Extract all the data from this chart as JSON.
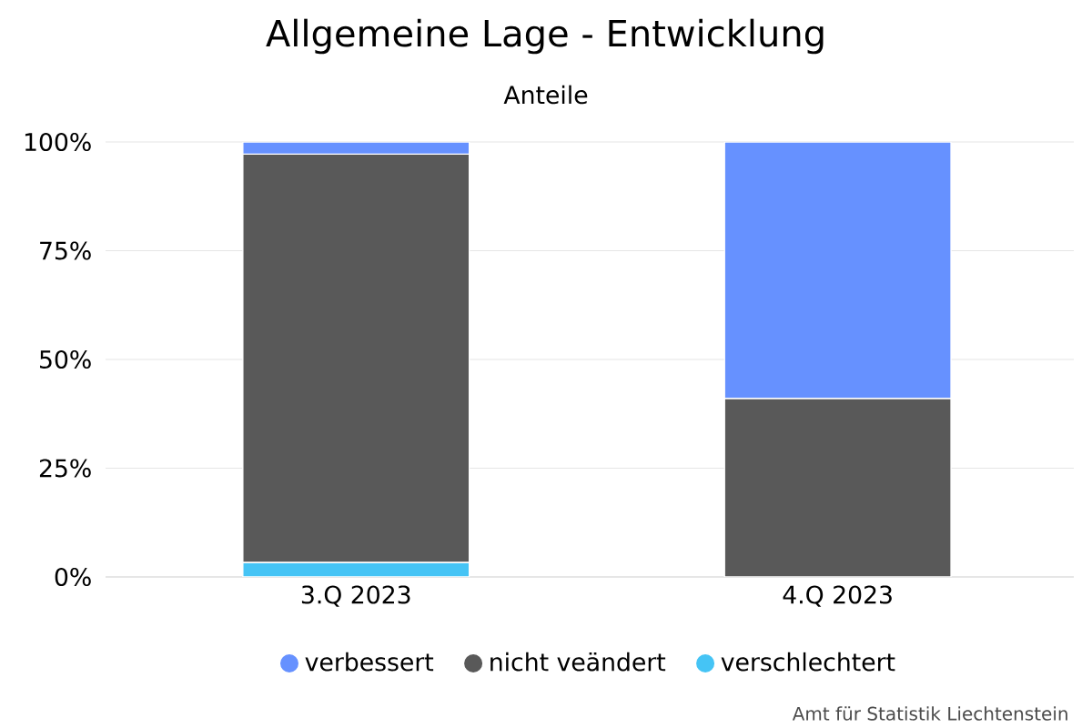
{
  "chart_data": {
    "type": "bar",
    "title": "Allgemeine Lage - Entwicklung",
    "subtitle": "Anteile",
    "categories": [
      "3.Q 2023",
      "4.Q 2023"
    ],
    "stacked": true,
    "series": [
      {
        "name": "verschlechtert",
        "color": "#45c4f5",
        "values": [
          3.3,
          0
        ]
      },
      {
        "name": "nicht veändert",
        "color": "#595959",
        "values": [
          93.9,
          41
        ]
      },
      {
        "name": "verbessert",
        "color": "#6691ff",
        "values": [
          2.8,
          59
        ]
      }
    ],
    "ylim": [
      0,
      100
    ],
    "yticks": [
      {
        "value": 0,
        "label": "0%"
      },
      {
        "value": 25,
        "label": "25%"
      },
      {
        "value": 50,
        "label": "50%"
      },
      {
        "value": 75,
        "label": "75%"
      },
      {
        "value": 100,
        "label": "100%"
      }
    ],
    "grid": "y",
    "legend": "bottom",
    "marker": "circle",
    "annotations": [
      "Amt für Statistik Liechtenstein"
    ]
  }
}
